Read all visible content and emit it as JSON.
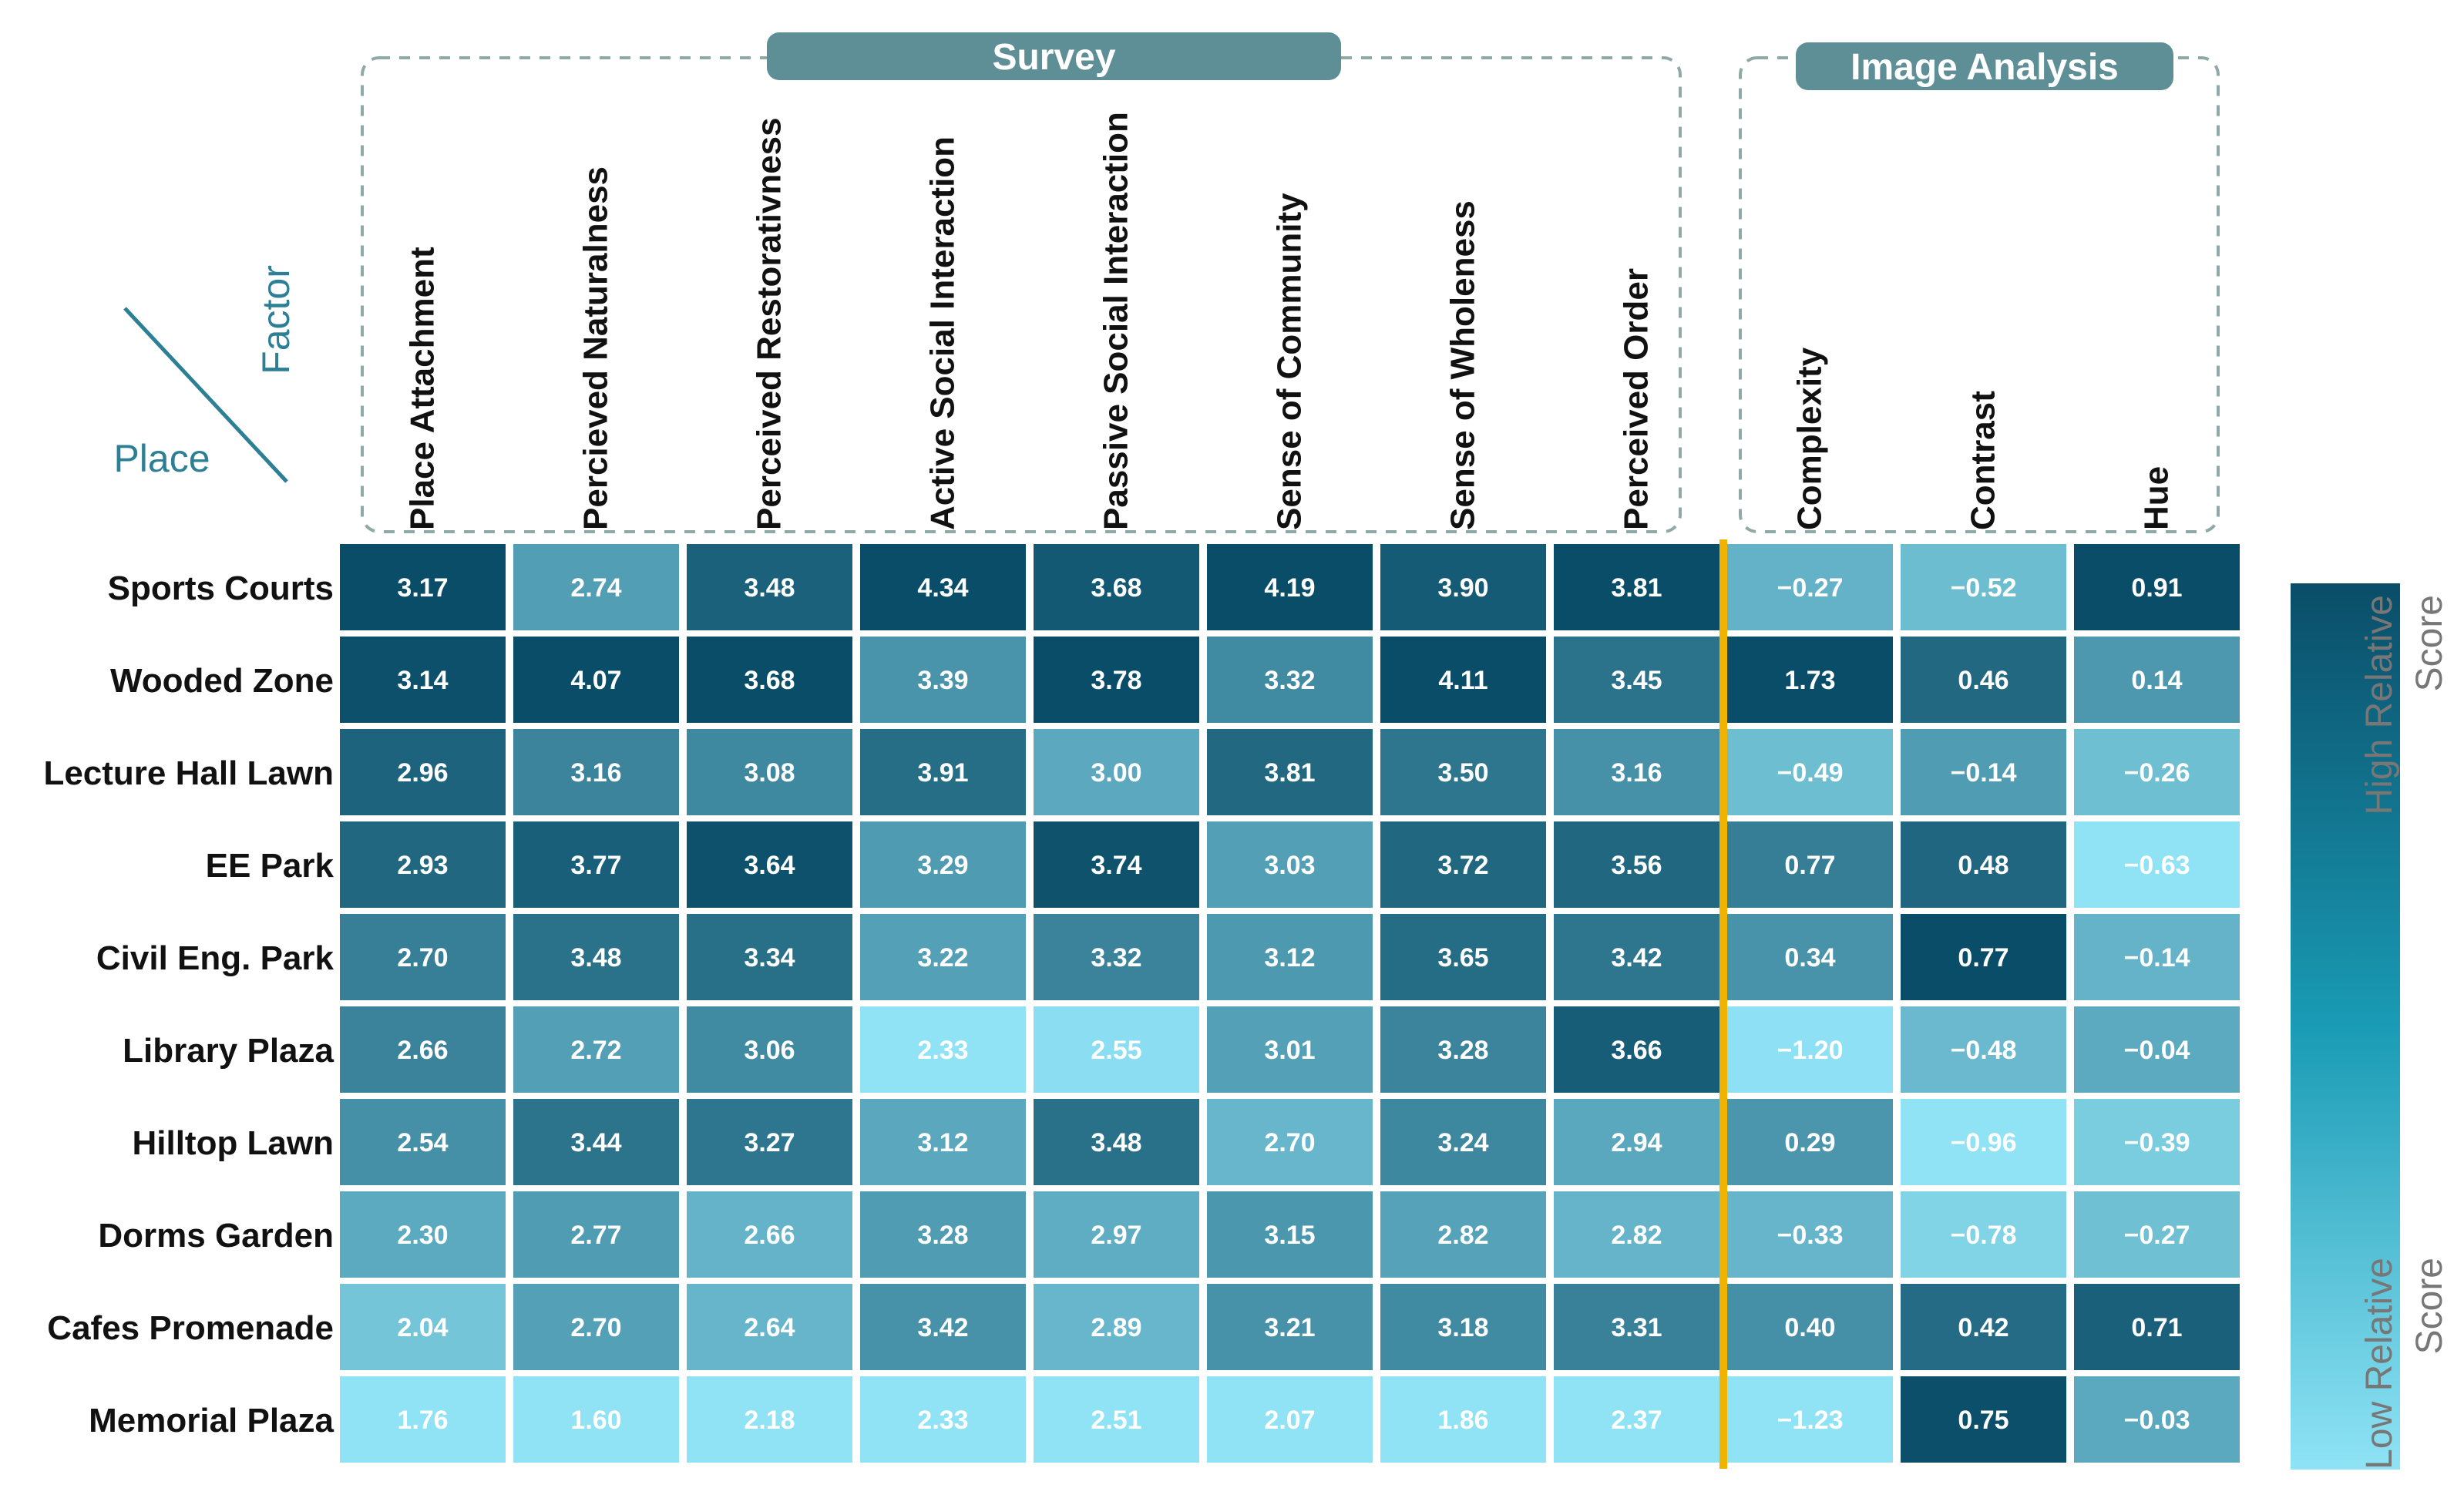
{
  "chart_data": {
    "type": "heatmap",
    "corner": {
      "factor_label": "Factor",
      "place_label": "Place"
    },
    "groups": [
      {
        "title": "Survey",
        "columns": [
          0,
          1,
          2,
          3,
          4,
          5,
          6,
          7
        ]
      },
      {
        "title": "Image Analysis",
        "columns": [
          8,
          9,
          10
        ]
      }
    ],
    "columns": [
      "Place Attachment",
      "Percieved Naturalness",
      "Perceived Restorativness",
      "Active Social Interaction",
      "Passive Social Interaction",
      "Sense of Community",
      "Sense of Wholeness",
      "Perceived Order",
      "Complexity",
      "Contrast",
      "Hue"
    ],
    "rows": [
      {
        "place": "Sports Courts",
        "values": [
          3.17,
          2.74,
          3.48,
          4.34,
          3.68,
          4.19,
          3.9,
          3.81,
          -0.27,
          -0.52,
          0.91
        ],
        "labels": [
          "3.17",
          "2.74",
          "3.48",
          "4.34",
          "3.68",
          "4.19",
          "3.90",
          "3.81",
          "−0.27",
          "−0.52",
          "0.91"
        ]
      },
      {
        "place": "Wooded Zone",
        "values": [
          3.14,
          4.07,
          3.68,
          3.39,
          3.78,
          3.32,
          4.11,
          3.45,
          1.73,
          0.46,
          0.14
        ],
        "labels": [
          "3.14",
          "4.07",
          "3.68",
          "3.39",
          "3.78",
          "3.32",
          "4.11",
          "3.45",
          "1.73",
          "0.46",
          "0.14"
        ]
      },
      {
        "place": "Lecture Hall Lawn",
        "values": [
          2.96,
          3.16,
          3.08,
          3.91,
          3.0,
          3.81,
          3.5,
          3.16,
          -0.49,
          -0.14,
          -0.26
        ],
        "labels": [
          "2.96",
          "3.16",
          "3.08",
          "3.91",
          "3.00",
          "3.81",
          "3.50",
          "3.16",
          "−0.49",
          "−0.14",
          "−0.26"
        ]
      },
      {
        "place": "EE Park",
        "values": [
          2.93,
          3.77,
          3.64,
          3.29,
          3.74,
          3.03,
          3.72,
          3.56,
          0.77,
          0.48,
          -0.63
        ],
        "labels": [
          "2.93",
          "3.77",
          "3.64",
          "3.29",
          "3.74",
          "3.03",
          "3.72",
          "3.56",
          "0.77",
          "0.48",
          "−0.63"
        ]
      },
      {
        "place": "Civil Eng. Park",
        "values": [
          2.7,
          3.48,
          3.34,
          3.22,
          3.32,
          3.12,
          3.65,
          3.42,
          0.34,
          0.77,
          -0.14
        ],
        "labels": [
          "2.70",
          "3.48",
          "3.34",
          "3.22",
          "3.32",
          "3.12",
          "3.65",
          "3.42",
          "0.34",
          "0.77",
          "−0.14"
        ]
      },
      {
        "place": "Library Plaza",
        "values": [
          2.66,
          2.72,
          3.06,
          2.33,
          2.55,
          3.01,
          3.28,
          3.66,
          -1.2,
          -0.48,
          -0.04
        ],
        "labels": [
          "2.66",
          "2.72",
          "3.06",
          "2.33",
          "2.55",
          "3.01",
          "3.28",
          "3.66",
          "−1.20",
          "−0.48",
          "−0.04"
        ]
      },
      {
        "place": "Hilltop Lawn",
        "values": [
          2.54,
          3.44,
          3.27,
          3.12,
          3.48,
          2.7,
          3.24,
          2.94,
          0.29,
          -0.96,
          -0.39
        ],
        "labels": [
          "2.54",
          "3.44",
          "3.27",
          "3.12",
          "3.48",
          "2.70",
          "3.24",
          "2.94",
          "0.29",
          "−0.96",
          "−0.39"
        ]
      },
      {
        "place": "Dorms Garden",
        "values": [
          2.3,
          2.77,
          2.66,
          3.28,
          2.97,
          3.15,
          2.82,
          2.82,
          -0.33,
          -0.78,
          -0.27
        ],
        "labels": [
          "2.30",
          "2.77",
          "2.66",
          "3.28",
          "2.97",
          "3.15",
          "2.82",
          "2.82",
          "−0.33",
          "−0.78",
          "−0.27"
        ]
      },
      {
        "place": "Cafes Promenade",
        "values": [
          2.04,
          2.7,
          2.64,
          3.42,
          2.89,
          3.21,
          3.18,
          3.31,
          0.4,
          0.42,
          0.71
        ],
        "labels": [
          "2.04",
          "2.70",
          "2.64",
          "3.42",
          "2.89",
          "3.21",
          "3.18",
          "3.31",
          "0.40",
          "0.42",
          "0.71"
        ]
      },
      {
        "place": "Memorial Plaza",
        "values": [
          1.76,
          1.6,
          2.18,
          2.33,
          2.51,
          2.07,
          1.86,
          2.37,
          -1.23,
          0.75,
          -0.03
        ],
        "labels": [
          "1.76",
          "1.60",
          "2.18",
          "2.33",
          "2.51",
          "2.07",
          "1.86",
          "2.37",
          "−1.23",
          "0.75",
          "−0.03"
        ]
      }
    ],
    "legend": {
      "high_label_line1": "High Relative",
      "high_label_line2": "Score",
      "low_label_line1": "Low Relative",
      "low_label_line2": "Score"
    },
    "colors": {
      "low": "#8fe3f5",
      "high": "#0a4d68",
      "separator": "#f0b400",
      "group_box": "#5e8f96",
      "dash": "#8fa9a8",
      "corner": "#2d7f96"
    }
  }
}
